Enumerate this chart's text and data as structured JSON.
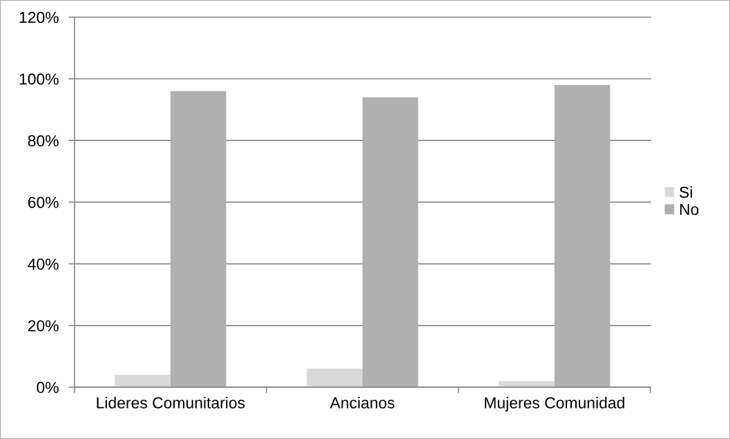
{
  "chart_data": {
    "type": "bar",
    "categories": [
      "Lideres Comunitarios",
      "Ancianos",
      "Mujeres Comunidad"
    ],
    "series": [
      {
        "name": "Si",
        "color": "#d9d9d9",
        "values": [
          4,
          6,
          2
        ]
      },
      {
        "name": "No",
        "color": "#b0b0b0",
        "values": [
          96,
          94,
          98
        ]
      }
    ],
    "ylim": [
      0,
      120
    ],
    "yticks": [
      {
        "value": 0,
        "label": "0%"
      },
      {
        "value": 20,
        "label": "20%"
      },
      {
        "value": 40,
        "label": "40%"
      },
      {
        "value": 60,
        "label": "60%"
      },
      {
        "value": 80,
        "label": "80%"
      },
      {
        "value": 100,
        "label": "100%"
      },
      {
        "value": 120,
        "label": "120%"
      }
    ],
    "grid": "y",
    "legend": "right"
  }
}
